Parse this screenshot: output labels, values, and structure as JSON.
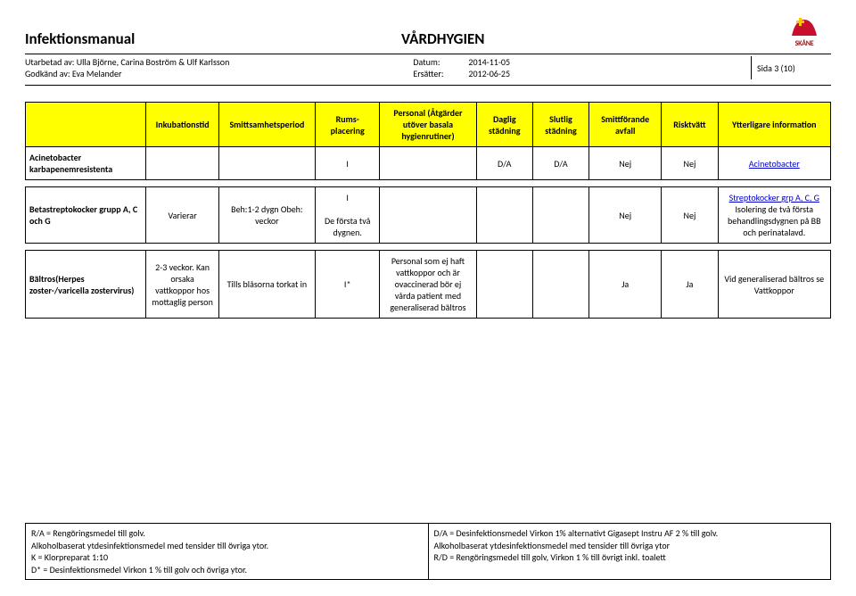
{
  "header": {
    "title": "Infektionsmanual",
    "midTitle": "VÅRDHYGIEN",
    "logoText": "SKÅNE",
    "authorsLabel": "Utarbetad av: ",
    "authors": "Ulla Björne, Carina Boström & Ulf Karlsson",
    "approvedLabel": "Godkänd av: ",
    "approved": "Eva Melander",
    "dateLabel": "Datum:",
    "date": "2014-11-05",
    "replacesLabel": "Ersätter:",
    "replaces": "2012-06-25",
    "page": "Sida 3 (10)"
  },
  "table": {
    "headers": [
      "",
      "Inkubationstid",
      "Smittsamhetsperiod",
      "Rums-placering",
      "Personal (Åtgärder utöver basala hygienrutiner)",
      "Daglig städning",
      "Slutlig städning",
      "Smittförande avfall",
      "Risktvätt",
      "Ytterligare information"
    ],
    "rows": [
      {
        "name": "Acinetobacter karbapenemresistenta",
        "c1": "",
        "c2": "",
        "c3": "I",
        "c4": "",
        "c5": "D/A",
        "c6": "D/A",
        "c7": "Nej",
        "c8": "Nej",
        "c9": "Acinetobacter",
        "c9_link": true
      },
      {
        "name": "Betastreptokocker grupp A, C och G",
        "c1": "Varierar",
        "c2": "Beh:1-2 dygn Obeh: veckor",
        "c3": "I\n\nDe första två dygnen.",
        "c4": "",
        "c5": "",
        "c6": "",
        "c7": "Nej",
        "c8": "Nej",
        "c9_pre": "Streptokocker grp A, C, G",
        "c9_post": "Isolering de två första behandlingsdygnen på BB och perinatalavd.",
        "c9_link": true
      },
      {
        "name": "Bältros(Herpes zoster-/varicella zostervirus)",
        "c1": "2-3 veckor. Kan orsaka vattkoppor hos mottaglig person",
        "c2": "Tills blåsorna torkat in",
        "c3": "I*",
        "c4": "Personal som ej haft vattkoppor och är ovaccinerad bör ej vårda patient med generaliserad bältros",
        "c5": "",
        "c6": "",
        "c7": "Ja",
        "c8": "Ja",
        "c9_post": "Vid generaliserad bältros se Vattkoppor"
      }
    ]
  },
  "footnotes": {
    "left": [
      "R/A = Rengöringsmedel till golv.",
      "Alkoholbaserat ytdesinfektionsmedel med tensider till övriga ytor.",
      "K = Klorpreparat 1:10",
      "D* = Desinfektionsmedel Virkon 1 % till golv och övriga ytor."
    ],
    "right": [
      "D/A = Desinfektionsmedel Virkon 1% alternativt Gigasept Instru AF 2 % till golv.",
      "Alkoholbaserat ytdesinfektionsmedel med tensider till övriga ytor",
      "R/D = Rengöringsmedel till golv, Virkon 1 % till övrigt inkl. toalett"
    ]
  },
  "colors": {
    "headerBg": "#ffff00",
    "link": "#0000cc",
    "logoRed": "#c8102e",
    "logoYellow": "#f6c900"
  }
}
